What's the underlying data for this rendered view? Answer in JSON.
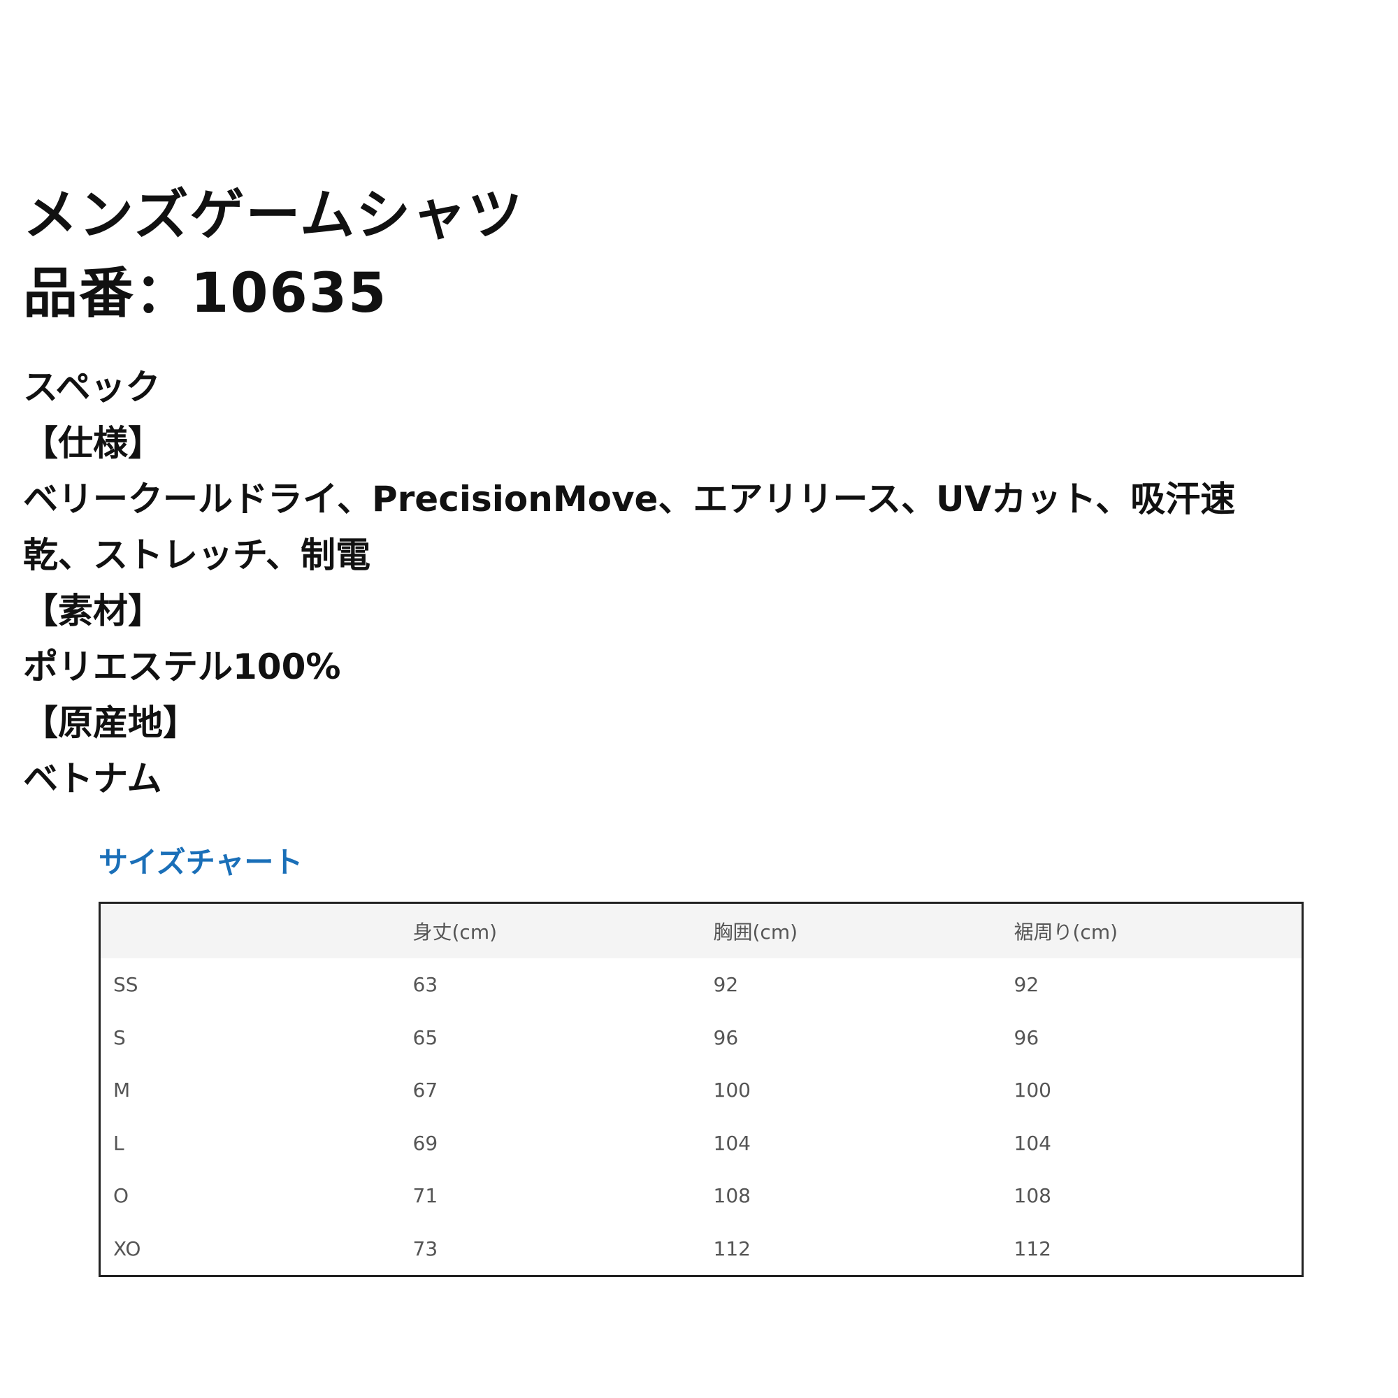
{
  "product": {
    "name": "メンズゲームシャツ",
    "number_line": "品番：10635"
  },
  "spec": {
    "lines": [
      "スペック",
      "【仕様】",
      "ベリークールドライ、PrecisionMove、エアリリース、UVカット、吸汗速",
      "乾、ストレッチ、制電",
      "【素材】",
      "ポリエステル100%",
      "【原産地】",
      "ベトナム"
    ]
  },
  "size_chart": {
    "title": "サイズチャート",
    "title_color": "#1a6fb8",
    "headers": [
      "",
      "身丈(cm)",
      "胸囲(cm)",
      "裾周り(cm)"
    ],
    "rows": [
      [
        "SS",
        "63",
        "92",
        "92"
      ],
      [
        "S",
        "65",
        "96",
        "96"
      ],
      [
        "M",
        "67",
        "100",
        "100"
      ],
      [
        "L",
        "69",
        "104",
        "104"
      ],
      [
        "O",
        "71",
        "108",
        "108"
      ],
      [
        "XO",
        "73",
        "112",
        "112"
      ]
    ]
  }
}
